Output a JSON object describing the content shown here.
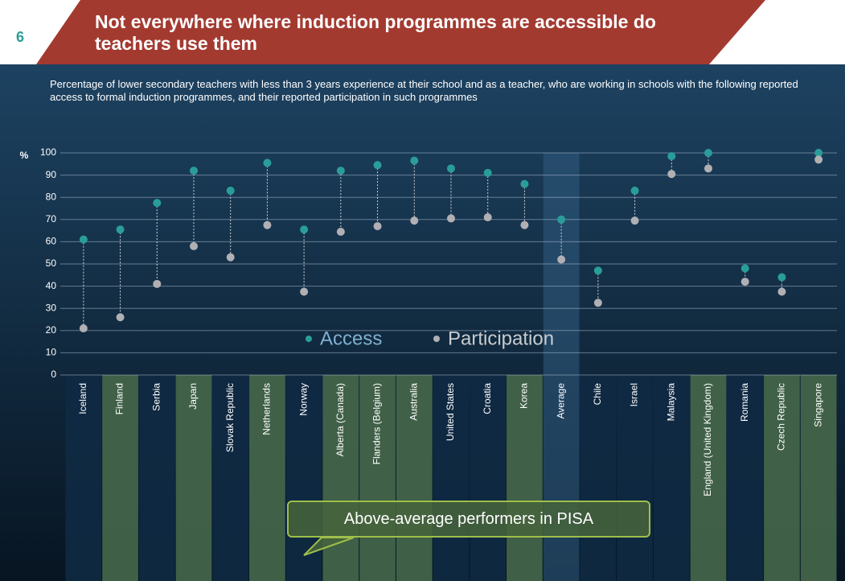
{
  "page_number": "6",
  "chart_data": {
    "type": "dot",
    "title": "Not everywhere where induction programmes are accessible do teachers use them",
    "subtitle": "Percentage of lower secondary teachers with less than 3 years experience at their school and  as a teacher, who are working in schools with the following reported access to formal induction programmes, and their reported participation in such programmes",
    "y_label": "%",
    "annotation": "Above-average performers in PISA",
    "categories": [
      "Iceland",
      "Finland",
      "Serbia",
      "Japan",
      "Slovak Republic",
      "Netherlands",
      "Norway",
      "Alberta (Canada)",
      "Flanders (Belgium)",
      "Australia",
      "United States",
      "Croatia",
      "Korea",
      "Average",
      "Chile",
      "Israel",
      "Malaysia",
      "England (United Kingdom)",
      "Romania",
      "Czech Republic",
      "Singapore"
    ],
    "category_colors": [
      "#0f2a44",
      "#46684a",
      "#0f2a44",
      "#46684a",
      "#0f2a44",
      "#46684a",
      "#0f2a44",
      "#46684a",
      "#46684a",
      "#46684a",
      "#0f2a44",
      "#0f2a44",
      "#46684a",
      "#2f587c",
      "#0f2a44",
      "#0f2a44",
      "#0f2a44",
      "#46684a",
      "#0f2a44",
      "#46684a",
      "#46684a"
    ],
    "series": [
      {
        "name": "Access",
        "color": "#2a9d9a",
        "values": [
          61,
          65.5,
          77.5,
          92,
          83,
          95.5,
          65.5,
          92,
          94.5,
          96.5,
          93,
          91,
          86,
          70,
          47,
          83,
          98.5,
          100,
          48,
          44,
          100
        ]
      },
      {
        "name": "Participation",
        "color": "#b0b0b4",
        "values": [
          21,
          26,
          41,
          58,
          53,
          67.5,
          37.5,
          64.5,
          67,
          69.5,
          70.5,
          71,
          67.5,
          52,
          32.5,
          69.5,
          90.5,
          93,
          42,
          37.5,
          97
        ]
      }
    ],
    "ylim": [
      0,
      100
    ],
    "yticks": [
      0,
      10,
      20,
      30,
      40,
      50,
      60,
      70,
      80,
      90,
      100
    ],
    "grid": true
  }
}
